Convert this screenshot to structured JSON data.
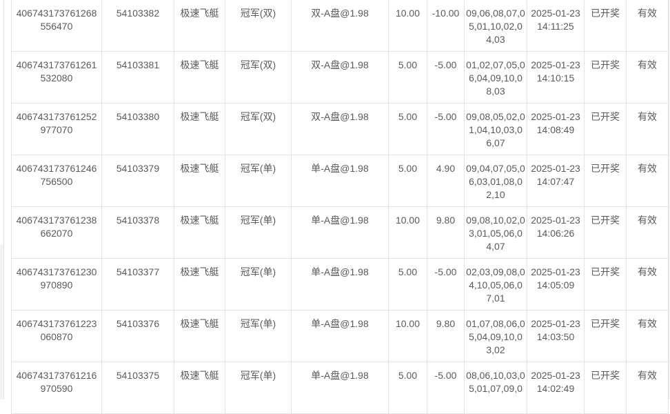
{
  "rows": [
    {
      "order_id": "406743173761268556470",
      "period": "54103382",
      "game": "极速飞艇",
      "play": "冠军(双)",
      "bet": "双-A盘@1.98",
      "amount": "10.00",
      "profit": "-10.00",
      "result": "09,06,08,07,05,01,10,02,04,03",
      "time": "2025-01-23 14:11:25",
      "status": "已开奖",
      "valid": "有效"
    },
    {
      "order_id": "406743173761261532080",
      "period": "54103381",
      "game": "极速飞艇",
      "play": "冠军(双)",
      "bet": "双-A盘@1.98",
      "amount": "5.00",
      "profit": "-5.00",
      "result": "01,02,07,05,06,04,09,10,08,03",
      "time": "2025-01-23 14:10:15",
      "status": "已开奖",
      "valid": "有效"
    },
    {
      "order_id": "406743173761252977070",
      "period": "54103380",
      "game": "极速飞艇",
      "play": "冠军(双)",
      "bet": "双-A盘@1.98",
      "amount": "5.00",
      "profit": "-5.00",
      "result": "09,08,05,02,01,04,10,03,06,07",
      "time": "2025-01-23 14:08:49",
      "status": "已开奖",
      "valid": "有效"
    },
    {
      "order_id": "406743173761246756500",
      "period": "54103379",
      "game": "极速飞艇",
      "play": "冠军(单)",
      "bet": "单-A盘@1.98",
      "amount": "5.00",
      "profit": "4.90",
      "result": "09,04,07,05,06,03,01,08,02,10",
      "time": "2025-01-23 14:07:47",
      "status": "已开奖",
      "valid": "有效"
    },
    {
      "order_id": "406743173761238662070",
      "period": "54103378",
      "game": "极速飞艇",
      "play": "冠军(单)",
      "bet": "单-A盘@1.98",
      "amount": "10.00",
      "profit": "9.80",
      "result": "09,08,10,02,03,01,05,06,04,07",
      "time": "2025-01-23 14:06:26",
      "status": "已开奖",
      "valid": "有效"
    },
    {
      "order_id": "406743173761230970890",
      "period": "54103377",
      "game": "极速飞艇",
      "play": "冠军(单)",
      "bet": "单-A盘@1.98",
      "amount": "5.00",
      "profit": "-5.00",
      "result": "02,03,09,08,04,10,05,06,07,01",
      "time": "2025-01-23 14:05:09",
      "status": "已开奖",
      "valid": "有效"
    },
    {
      "order_id": "406743173761223060870",
      "period": "54103376",
      "game": "极速飞艇",
      "play": "冠军(单)",
      "bet": "单-A盘@1.98",
      "amount": "10.00",
      "profit": "9.80",
      "result": "01,07,08,06,05,04,09,10,03,02",
      "time": "2025-01-23 14:03:50",
      "status": "已开奖",
      "valid": "有效"
    },
    {
      "order_id": "406743173761216970590",
      "period": "54103375",
      "game": "极速飞艇",
      "play": "冠军(单)",
      "bet": "单-A盘@1.98",
      "amount": "5.00",
      "profit": "-5.00",
      "result": "08,06,10,03,05,01,07,09,0",
      "time": "2025-01-23 14:02:49",
      "status": "已开奖",
      "valid": "有效"
    }
  ]
}
